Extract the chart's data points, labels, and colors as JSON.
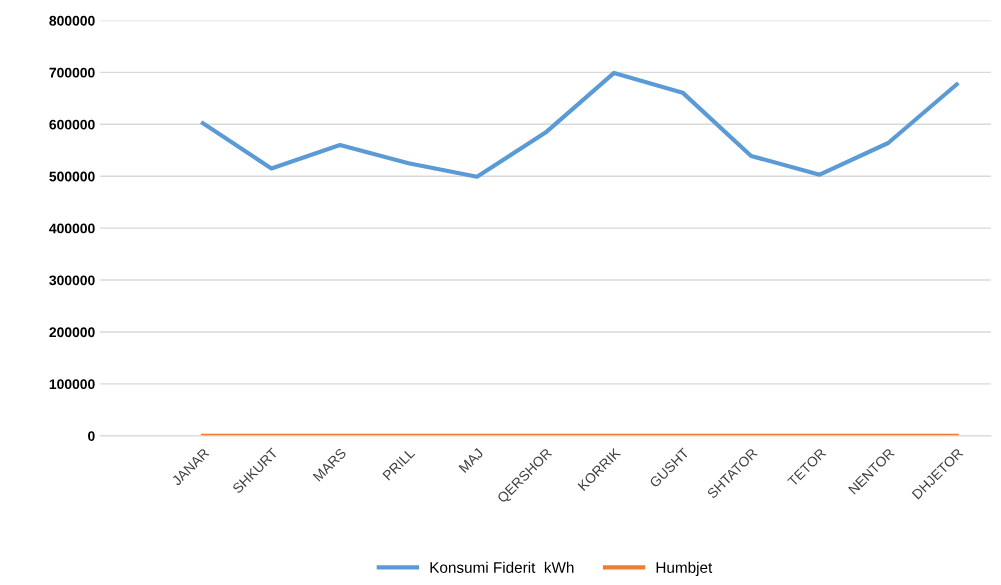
{
  "chart_data": {
    "type": "line",
    "categories": [
      null,
      "JANAR",
      "SHKURT",
      "MARS",
      "PRILL",
      "MAJ",
      "QERSHOR",
      "KORRIK",
      "GUSHT",
      "SHTATOR",
      "TETOR",
      "NENTOR",
      "DHJETOR"
    ],
    "series": [
      {
        "name": "Konsumi Fiderit  kWh",
        "color": "#5b9bd5",
        "values": [
          null,
          602000,
          515000,
          560000,
          525000,
          499000,
          584000,
          699000,
          661000,
          539000,
          503000,
          564000,
          677000
        ]
      },
      {
        "name": "Humbjet",
        "color": "#ed7d31",
        "values": [
          null,
          0,
          0,
          0,
          0,
          0,
          0,
          0,
          0,
          0,
          0,
          0,
          0
        ]
      }
    ],
    "ylim": [
      0,
      800000
    ],
    "yticks": [
      0,
      100000,
      200000,
      300000,
      400000,
      500000,
      600000,
      700000,
      800000
    ],
    "grid": "y",
    "legend": "bottom",
    "marker": "none",
    "line_style": "solid"
  }
}
